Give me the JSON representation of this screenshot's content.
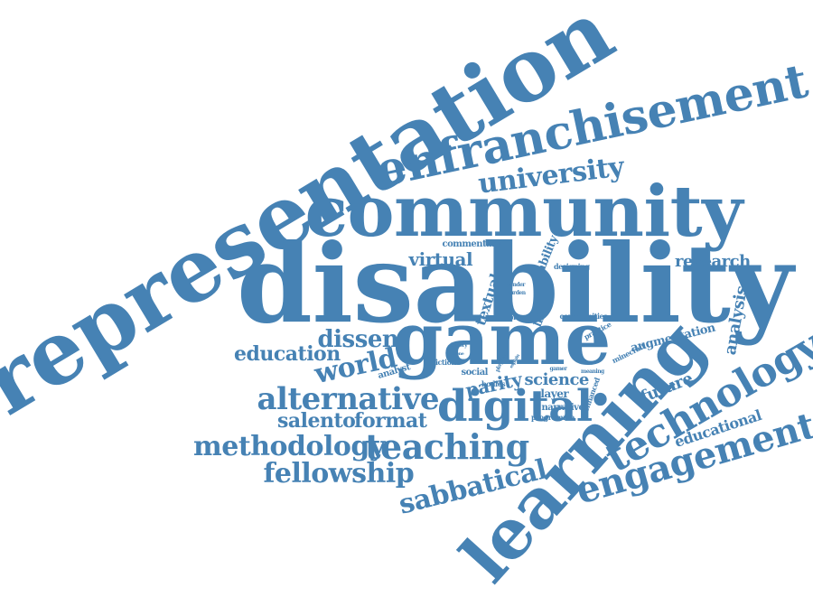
{
  "color": "#4682b4",
  "words": [
    {
      "text": "representation"
    },
    {
      "text": "enfranchisement"
    },
    {
      "text": "community"
    },
    {
      "text": "disability"
    },
    {
      "text": "university"
    },
    {
      "text": "game"
    },
    {
      "text": "learning"
    },
    {
      "text": "technology"
    },
    {
      "text": "engagement"
    },
    {
      "text": "digital"
    },
    {
      "text": "teaching"
    },
    {
      "text": "alternative"
    },
    {
      "text": "methodology"
    },
    {
      "text": "fellowship"
    },
    {
      "text": "sabbatical"
    },
    {
      "text": "world"
    },
    {
      "text": "dissent"
    },
    {
      "text": "education"
    },
    {
      "text": "salento"
    },
    {
      "text": "format"
    },
    {
      "text": "virtual"
    },
    {
      "text": "textual"
    },
    {
      "text": "research"
    },
    {
      "text": "analysis"
    },
    {
      "text": "educational"
    },
    {
      "text": "future"
    },
    {
      "text": "science"
    },
    {
      "text": "parity"
    },
    {
      "text": "augmentation"
    },
    {
      "text": "ability"
    },
    {
      "text": "commentary"
    },
    {
      "text": "designing"
    },
    {
      "text": "communities"
    },
    {
      "text": "narrative"
    },
    {
      "text": "programme"
    },
    {
      "text": "player"
    },
    {
      "text": "social"
    },
    {
      "text": "bodies"
    },
    {
      "text": "analyst"
    },
    {
      "text": "fiction"
    },
    {
      "text": "life"
    },
    {
      "text": "play"
    },
    {
      "text": "gender"
    },
    {
      "text": "burden"
    },
    {
      "text": "practice"
    },
    {
      "text": "minecraft"
    },
    {
      "text": "enhanced"
    },
    {
      "text": "meaning"
    },
    {
      "text": "gamer"
    },
    {
      "text": "theory"
    },
    {
      "text": "phone"
    },
    {
      "text": "playing"
    },
    {
      "text": "explain"
    }
  ]
}
